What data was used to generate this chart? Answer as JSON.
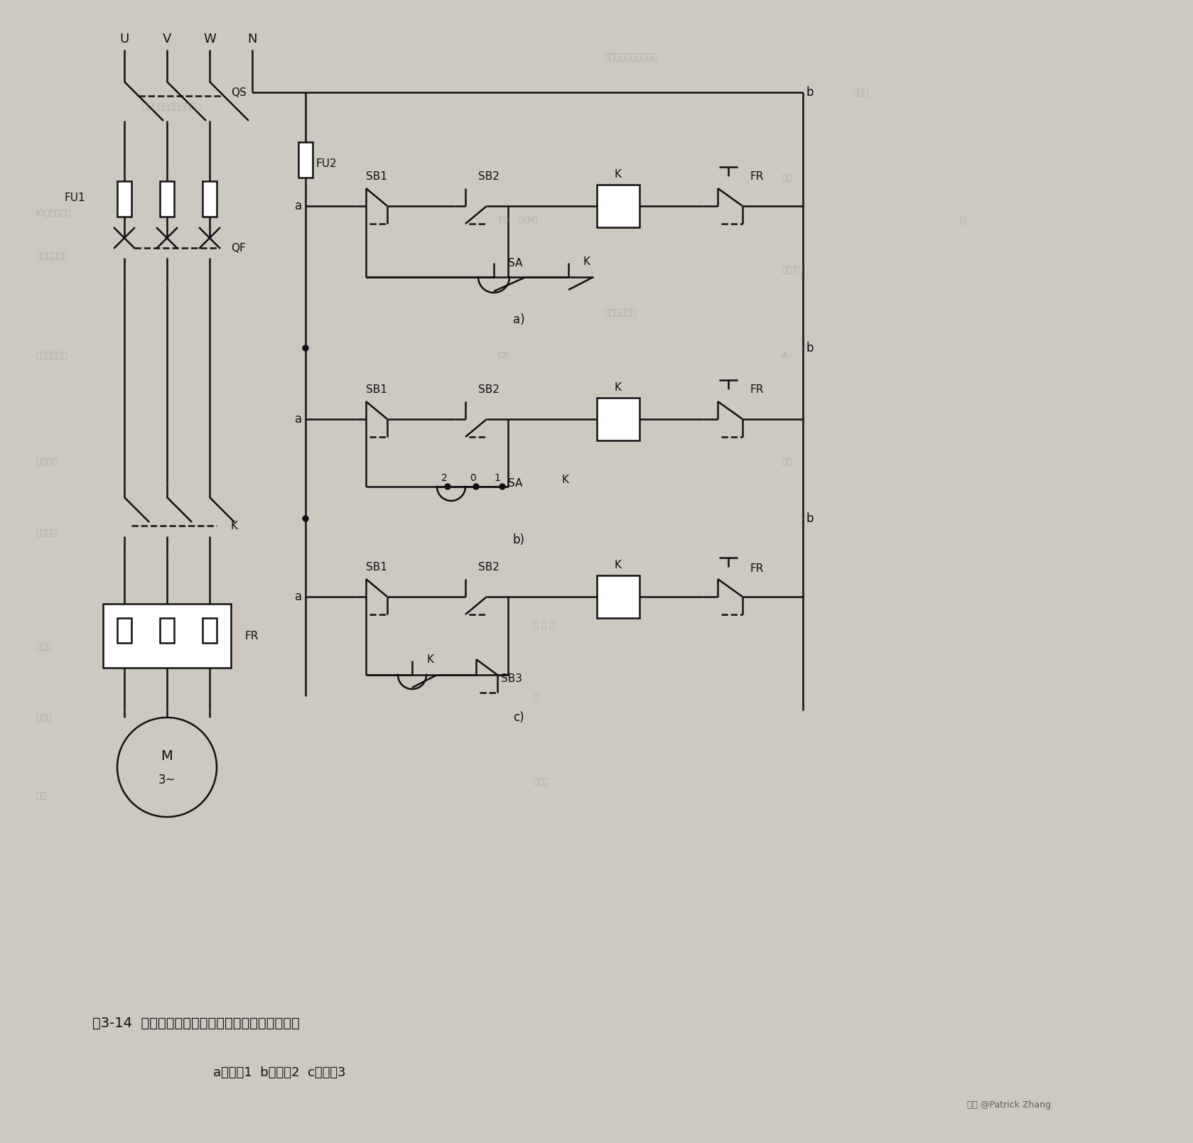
{
  "title": "图3-14  三相异步电动机全电压起停、点动控制线路",
  "subtitle": "a）方案1  b）方案2  c）方案3",
  "watermark": "知乎 @Patrick Zhang",
  "bg_color": "#cdc8c0",
  "line_color": "#111111",
  "text_color": "#111111",
  "fig_width": 16.79,
  "fig_height": 16.09,
  "dpi": 100,
  "lw": 1.8
}
